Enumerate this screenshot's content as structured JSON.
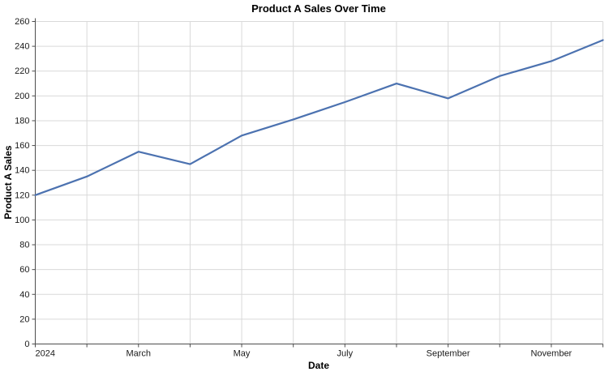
{
  "chart_data": {
    "type": "line",
    "title": "Product A Sales Over Time",
    "xlabel": "Date",
    "ylabel": "Product A Sales",
    "x": [
      "2024-01",
      "2024-02",
      "2024-03",
      "2024-04",
      "2024-05",
      "2024-06",
      "2024-07",
      "2024-08",
      "2024-09",
      "2024-10",
      "2024-11",
      "2024-12"
    ],
    "values": [
      120,
      135,
      155,
      145,
      168,
      181,
      195,
      210,
      198,
      216,
      228,
      245
    ],
    "ylim": [
      0,
      260
    ],
    "ytick_step": 20,
    "xtick_labels": [
      {
        "index": 0,
        "label": "2024",
        "align": "start"
      },
      {
        "index": 2,
        "label": "March",
        "align": "middle"
      },
      {
        "index": 4,
        "label": "May",
        "align": "middle"
      },
      {
        "index": 6,
        "label": "July",
        "align": "middle"
      },
      {
        "index": 8,
        "label": "September",
        "align": "middle"
      },
      {
        "index": 10,
        "label": "November",
        "align": "middle"
      }
    ],
    "grid": true,
    "legend_position": "none",
    "line_color": "#4c72b0",
    "grid_color": "#d9d9d9",
    "axis_color": "#4d4d4d",
    "text_color": "#1a1a1a"
  }
}
